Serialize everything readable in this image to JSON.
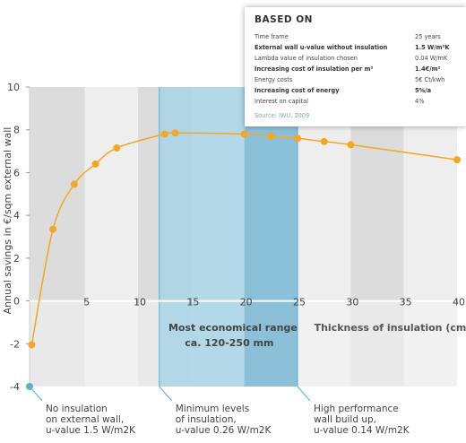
{
  "chart_data": {
    "type": "line",
    "ylabel": "Annual savings in €/sqm external wall",
    "xlabel": "Thickness of insulation (cm)",
    "xlim": [
      -0.2,
      40
    ],
    "ylim": [
      -4,
      10
    ],
    "x_ticks": [
      "5",
      "10",
      "15",
      "20",
      "25",
      "30",
      "35",
      "40"
    ],
    "y_ticks": [
      "10",
      "8",
      "6",
      "4",
      "2",
      "0",
      "-2",
      "-4"
    ],
    "points": [
      {
        "x": 0,
        "y": -2.05
      },
      {
        "x": 2,
        "y": 3.35
      },
      {
        "x": 4,
        "y": 5.45
      },
      {
        "x": 6,
        "y": 6.4
      },
      {
        "x": 8,
        "y": 7.15
      },
      {
        "x": 12.5,
        "y": 7.8
      },
      {
        "x": 13.5,
        "y": 7.85
      },
      {
        "x": 20,
        "y": 7.8
      },
      {
        "x": 22.5,
        "y": 7.7
      },
      {
        "x": 25,
        "y": 7.6
      },
      {
        "x": 27.5,
        "y": 7.45
      },
      {
        "x": 30,
        "y": 7.3
      },
      {
        "x": 40,
        "y": 6.6
      }
    ],
    "start_marker": {
      "x": -0.2,
      "y": -4
    },
    "line_color": "#f5a623",
    "bands": {
      "dark": "#dcdcdc",
      "light": "#eeeeee",
      "plot_bottom": "#f4f4f4"
    },
    "ranges": [
      {
        "id": "economical",
        "from": 12,
        "to": 25,
        "color": "#a8d4e6",
        "label": "Most economical range",
        "sublabel": "ca. 120-250 mm"
      },
      {
        "id": "high-performance",
        "from": 20,
        "to": 25,
        "color": "#7fb8d4"
      }
    ],
    "grid": false,
    "legend": "none",
    "annotations": [
      {
        "id": "no-insulation",
        "x": -0.2,
        "lines": [
          "No insulation",
          "on external wall,",
          "u-value 1.5 W/m2K"
        ]
      },
      {
        "id": "minimum",
        "x": 12,
        "lines": [
          "Minimum levels",
          "of insulation,",
          "u-value 0.26 W/m2K"
        ]
      },
      {
        "id": "high-performance",
        "x": 25,
        "lines": [
          "High performance",
          "wall build up,",
          "u-value 0.14 W/m2K"
        ]
      }
    ]
  },
  "infobox": {
    "title": "BASED ON",
    "rows": [
      {
        "label": "Time frame",
        "value": "25 years",
        "bold": false
      },
      {
        "label": "External wall u-value without insulation",
        "value": "1.5 W/m²K",
        "bold": true
      },
      {
        "label": "Lambda value of insulation chosen",
        "value": "0.04 W/mK",
        "bold": false
      },
      {
        "label": "Increasing cost of insulation per m²",
        "value": "1.4€/m²",
        "bold": true
      },
      {
        "label": "Energy costs",
        "value": "5€ Ct/kwh",
        "bold": false
      },
      {
        "label": "Increasing cost of energy",
        "value": "5%/a",
        "bold": true
      },
      {
        "label": "Interest on capital",
        "value": "4%",
        "bold": false
      }
    ],
    "source": "Source: IWU, 2009"
  }
}
